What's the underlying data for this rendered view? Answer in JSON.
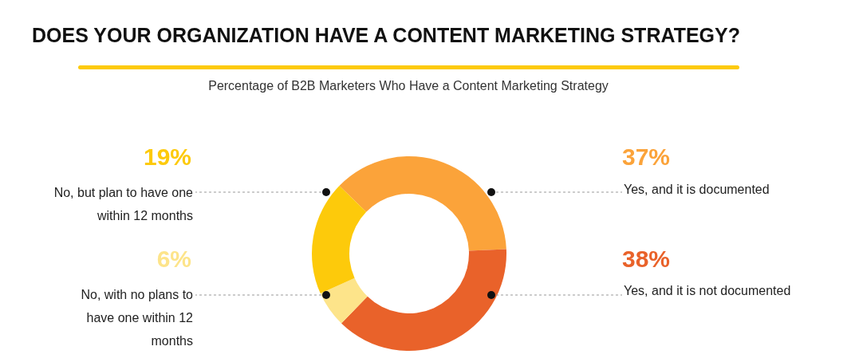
{
  "chart_data": {
    "type": "donut",
    "title": "DOES YOUR ORGANIZATION HAVE A CONTENT MARKETING STRATEGY?",
    "subtitle": "Percentage of B2B Marketers Who Have a Content Marketing Strategy",
    "categories": [
      "Yes, and it is documented",
      "Yes, and it is not documented",
      "No, with no plans to have one within 12 months",
      "No, but plan to have one within 12 months"
    ],
    "values": [
      37,
      38,
      6,
      19
    ],
    "colors": [
      "#fba33a",
      "#e9622a",
      "#fde48a",
      "#fdca0b"
    ],
    "value_labels": [
      "37%",
      "38%",
      "6%",
      "19%"
    ],
    "legend": false
  }
}
